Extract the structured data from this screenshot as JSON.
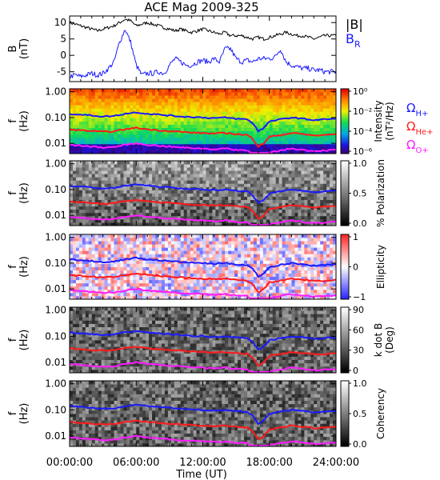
{
  "chart_data": {
    "title": "ACE Mag 2009-325",
    "xlabel": "Time (UT)",
    "x_ticks": [
      "00:00:00",
      "06:00:00",
      "12:00:00",
      "18:00:00",
      "24:00:00"
    ],
    "x_range_hours": [
      0,
      24
    ],
    "panels": [
      {
        "type": "line",
        "ylabel": "B",
        "yunit": "(nT)",
        "ylim": [
          -8,
          12
        ],
        "yticks": [
          "10",
          "5",
          "0",
          "-5"
        ],
        "ytick_values": [
          10,
          5,
          0,
          -5
        ],
        "legend": [
          {
            "label": "|B|",
            "color": "#000000"
          },
          {
            "label": "B",
            "sub": "R",
            "color": "#1a1aff"
          }
        ],
        "series": [
          {
            "name": "|B|",
            "color": "#000000",
            "x": [
              0,
              0.5,
              1,
              1.5,
              2,
              2.5,
              3,
              3.5,
              4,
              4.5,
              5,
              5.5,
              6,
              6.5,
              7,
              7.5,
              8,
              8.5,
              9,
              9.5,
              10,
              10.5,
              11,
              11.5,
              12,
              12.5,
              13,
              13.5,
              14,
              14.5,
              15,
              15.5,
              16,
              16.5,
              17,
              17.5,
              18,
              18.5,
              19,
              19.5,
              20,
              20.5,
              21,
              21.5,
              22,
              22.5,
              23,
              23.5,
              24
            ],
            "values": [
              10,
              9.5,
              9,
              8.5,
              8,
              7.5,
              8,
              8.5,
              9,
              10,
              11,
              10.5,
              9,
              9.5,
              10,
              9.5,
              9,
              8.5,
              8,
              7.5,
              8,
              7.5,
              7,
              7.5,
              8,
              7.5,
              7,
              6.5,
              7,
              6,
              6,
              6,
              5.5,
              5,
              5.5,
              5,
              5.5,
              6,
              6.5,
              7,
              6.5,
              6,
              6,
              5.5,
              5,
              5.5,
              6,
              6,
              6
            ]
          },
          {
            "name": "B",
            "color": "#1a1aff",
            "x": [
              0,
              0.5,
              1,
              1.5,
              2,
              2.5,
              3,
              3.5,
              4,
              4.5,
              5,
              5.5,
              6,
              6.5,
              7,
              7.5,
              8,
              8.5,
              9,
              9.5,
              10,
              10.5,
              11,
              11.5,
              12,
              12.5,
              13,
              13.5,
              14,
              14.5,
              15,
              15.5,
              16,
              16.5,
              17,
              17.5,
              18,
              18.5,
              19,
              19.5,
              20,
              20.5,
              21,
              21.5,
              22,
              22.5,
              23,
              23.5,
              24
            ],
            "values": [
              -6.5,
              -6,
              -6.5,
              -6,
              -5.5,
              -6,
              -5.5,
              -4,
              -2,
              4,
              8,
              4,
              -3,
              -6,
              -5.5,
              -5.5,
              -5,
              -5.5,
              -3,
              -1,
              -2,
              -3,
              -3,
              -2,
              -1.5,
              -2,
              -1,
              -2,
              2,
              2,
              -1,
              -2,
              -1.5,
              -2,
              -1,
              -1,
              -1,
              -0.5,
              2,
              -2,
              -3,
              -3.5,
              -4,
              -4,
              -4.5,
              -4.5,
              -5,
              -5,
              -5
            ]
          }
        ]
      },
      {
        "type": "spectrogram",
        "ylabel": "f",
        "yunit": "(Hz)",
        "colorbar": {
          "label": "Intensity",
          "unit": "(nT²/Hz)",
          "ticks": [
            "10⁰",
            "10⁻²",
            "10⁻⁴",
            "10⁻⁶"
          ],
          "palette": "rainbow"
        },
        "legend": [
          {
            "label": "Ω",
            "sub": "H+",
            "color": "#1a1aff"
          },
          {
            "label": "Ω",
            "sub": "He+",
            "color": "#ff1a1a"
          },
          {
            "label": "Ω",
            "sub": "O+",
            "color": "#ff1aff"
          }
        ]
      },
      {
        "type": "spectrogram",
        "ylabel": "f",
        "yunit": "(Hz)",
        "colorbar": {
          "label": "% Polarization",
          "ticks": [
            "1.0",
            "0.5",
            "0.0"
          ],
          "palette": "gray"
        }
      },
      {
        "type": "spectrogram",
        "ylabel": "f",
        "yunit": "(Hz)",
        "colorbar": {
          "label": "Ellipticity",
          "ticks": [
            "1",
            "0",
            "−1"
          ],
          "palette": "bwr"
        }
      },
      {
        "type": "spectrogram",
        "ylabel": "f",
        "yunit": "(Hz)",
        "colorbar": {
          "label": "k dot B",
          "unit": "(Deg)",
          "ticks": [
            "90",
            "60",
            "30",
            "0"
          ],
          "palette": "gray"
        }
      },
      {
        "type": "spectrogram",
        "ylabel": "f",
        "yunit": "(Hz)",
        "colorbar": {
          "label": "Coherency",
          "ticks": [
            "1.0",
            "0.5",
            "0.0"
          ],
          "palette": "gray"
        }
      }
    ],
    "freq_axis": {
      "scale": "log",
      "range_hz": [
        0.004,
        1.3
      ],
      "ticks": [
        "1.00",
        "0.10",
        "0.01"
      ],
      "tick_values": [
        1,
        0.1,
        0.01
      ]
    },
    "gyrofrequency_lines": [
      {
        "name": "H+",
        "color": "#1a1aff",
        "x": [
          0,
          1,
          2,
          3,
          4,
          5,
          6,
          7,
          8,
          9,
          10,
          11,
          12,
          13,
          14,
          15,
          16,
          16.5,
          17,
          17.5,
          18,
          19,
          20,
          21,
          22,
          23,
          24
        ],
        "values": [
          0.14,
          0.13,
          0.12,
          0.11,
          0.115,
          0.14,
          0.16,
          0.14,
          0.13,
          0.12,
          0.11,
          0.105,
          0.1,
          0.095,
          0.1,
          0.09,
          0.085,
          0.06,
          0.03,
          0.04,
          0.07,
          0.085,
          0.1,
          0.09,
          0.08,
          0.085,
          0.09
        ]
      },
      {
        "name": "He+",
        "color": "#ff1a1a",
        "x": [
          0,
          1,
          2,
          3,
          4,
          5,
          6,
          7,
          8,
          9,
          10,
          11,
          12,
          13,
          14,
          15,
          16,
          16.5,
          17,
          17.5,
          18,
          19,
          20,
          21,
          22,
          23,
          24
        ],
        "values": [
          0.035,
          0.032,
          0.03,
          0.028,
          0.029,
          0.035,
          0.04,
          0.035,
          0.032,
          0.03,
          0.028,
          0.026,
          0.025,
          0.024,
          0.025,
          0.023,
          0.021,
          0.015,
          0.0075,
          0.01,
          0.018,
          0.021,
          0.025,
          0.023,
          0.02,
          0.021,
          0.023
        ]
      },
      {
        "name": "O+",
        "color": "#ff1aff",
        "x": [
          0,
          1,
          2,
          3,
          4,
          5,
          6,
          7,
          8,
          9,
          10,
          11,
          12,
          13,
          14,
          15,
          16,
          16.5,
          17,
          17.5,
          18,
          19,
          20,
          21,
          22,
          23,
          24
        ],
        "values": [
          0.0088,
          0.0081,
          0.0075,
          0.0069,
          0.0072,
          0.0088,
          0.01,
          0.0088,
          0.0081,
          0.0075,
          0.0069,
          0.0066,
          0.0063,
          0.0059,
          0.0063,
          0.0056,
          0.0053,
          0.0038,
          0.0019,
          0.0025,
          0.0044,
          0.0053,
          0.0063,
          0.0056,
          0.005,
          0.0053,
          0.0056
        ]
      }
    ]
  }
}
